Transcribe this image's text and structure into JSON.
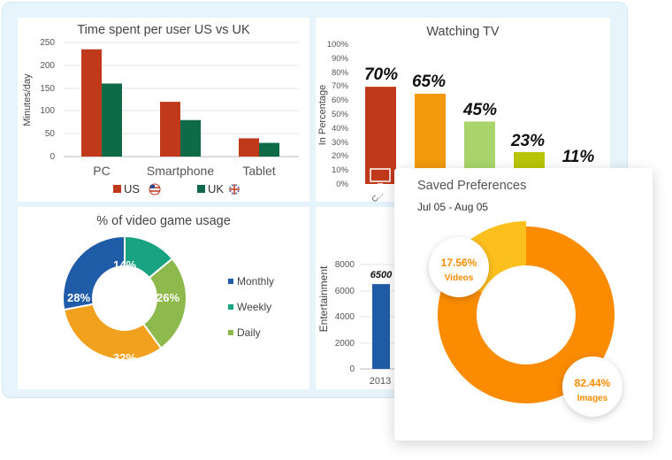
{
  "colors": {
    "us": "#c0391b",
    "uk": "#0f6b47",
    "monthly": "#1f5ca8",
    "weekly": "#1aa382",
    "daily": "#8db94d",
    "other": "#f2a11f",
    "images": "#fb8c00",
    "videos": "#fbbf1e"
  },
  "charts": {
    "time_spent": {
      "title": "Time spent per user US vs UK",
      "ylabel": "Minutes/day",
      "ticks": [
        "250",
        "200",
        "150",
        "100",
        "50",
        "0"
      ],
      "legend_us": "US",
      "legend_uk": "UK",
      "categories": [
        "PC",
        "Smartphone",
        "Tablet"
      ]
    },
    "tv": {
      "title": "Watching TV",
      "ylabel": "In Percentage",
      "ticks": [
        "100%",
        "90%",
        "80%",
        "70%",
        "60%",
        "50%",
        "40%",
        "30%",
        "20%",
        "10%",
        "0%"
      ],
      "labels": [
        "70%",
        "65%",
        "45%",
        "23%",
        "11%"
      ],
      "first_category": "C..."
    },
    "game": {
      "title": "% of video game usage",
      "labels": [
        "14%",
        "26%",
        "32%",
        "28%"
      ],
      "legend": [
        "Monthly",
        "Weekly",
        "Daily"
      ]
    },
    "ent": {
      "ylabel": "Entertainment",
      "ticks": [
        "8000",
        "6000",
        "4000",
        "2000",
        "0"
      ],
      "value_label": "6500",
      "category": "2013"
    }
  },
  "card": {
    "title": "Saved Preferences",
    "date_range": "Jul 05 - Aug 05",
    "videos_pct": "17.56%",
    "videos_label": "Videos",
    "images_pct": "82.44%",
    "images_label": "Images"
  },
  "chart_data": [
    {
      "type": "bar",
      "title": "Time spent per user US vs UK",
      "ylabel": "Minutes/day",
      "ylim": [
        0,
        250
      ],
      "categories": [
        "PC",
        "Smartphone",
        "Tablet"
      ],
      "series": [
        {
          "name": "US",
          "values": [
            235,
            120,
            40
          ]
        },
        {
          "name": "UK",
          "values": [
            160,
            80,
            30
          ]
        }
      ],
      "legend": "bottom"
    },
    {
      "type": "bar",
      "title": "Watching TV",
      "ylabel": "In Percentage",
      "ylim": [
        0,
        100
      ],
      "values": [
        70,
        65,
        45,
        23,
        11
      ],
      "bar_colors": [
        "#c0391b",
        "#f29a0c",
        "#a9d46b",
        "#b8c409",
        "#f2d211"
      ]
    },
    {
      "type": "pie",
      "title": "% of video game usage",
      "slices": [
        {
          "label": "14%",
          "value": 14,
          "color": "#1aa382"
        },
        {
          "label": "26%",
          "value": 26,
          "color": "#8db94d"
        },
        {
          "label": "32%",
          "value": 32,
          "color": "#f2a11f"
        },
        {
          "label": "28%",
          "value": 28,
          "color": "#1f5ca8"
        }
      ],
      "legend": [
        "Monthly",
        "Weekly",
        "Daily"
      ],
      "legend_position": "right"
    },
    {
      "type": "bar",
      "ylabel": "Entertainment",
      "ylim": [
        0,
        8000
      ],
      "categories": [
        "2013"
      ],
      "values": [
        6500
      ]
    },
    {
      "type": "pie",
      "title": "Saved Preferences",
      "slices": [
        {
          "label": "Videos",
          "value": 17.56,
          "color": "#fbbf1e"
        },
        {
          "label": "Images",
          "value": 82.44,
          "color": "#fb8c00"
        }
      ]
    }
  ]
}
